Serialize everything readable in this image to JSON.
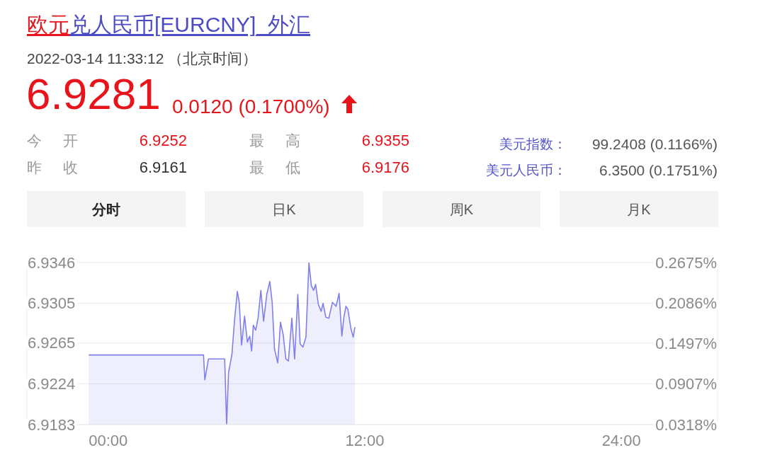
{
  "chart_data": {
    "type": "area",
    "title": "欧元兑人民币[EURCNY]_外汇",
    "subtitle": "2022-03-14 11:33:12 （北京时间）",
    "annotations": [
      "6.9281",
      "0.0120 (0.1700%)",
      "今 开",
      "6.9252",
      "最 高",
      "6.9355",
      "昨 收",
      "6.9161",
      "最 低",
      "6.9176",
      "美元指数：",
      "99.2408 (0.1166%)",
      "美元人民币：",
      "6.3500 (0.1751%)",
      "分时",
      "日K",
      "周K",
      "月K"
    ],
    "x": [
      -0.91,
      4.46,
      4.52,
      4.69,
      5.45,
      5.54,
      5.63,
      5.79,
      5.91,
      6.04,
      6.13,
      6.24,
      6.38,
      6.51,
      6.62,
      6.71,
      6.79,
      6.9,
      7.01,
      7.14,
      7.27,
      7.42,
      7.56,
      7.67,
      7.78,
      7.93,
      8.06,
      8.19,
      8.31,
      8.43,
      8.59,
      8.72,
      8.87,
      8.98,
      9.11,
      9.25,
      9.39,
      9.5,
      9.61,
      9.7,
      9.83,
      9.96,
      10.05,
      10.18,
      10.32,
      10.49,
      10.66,
      10.8,
      10.93,
      11.02,
      11.12,
      11.21,
      11.35,
      11.46,
      11.54
    ],
    "series": [
      {
        "color": "#7f7fee",
        "values": [
          6.9253,
          6.9253,
          6.9228,
          6.9249,
          6.9249,
          6.9183,
          6.9235,
          6.9254,
          6.9288,
          6.9317,
          6.9306,
          6.9263,
          6.9292,
          6.9266,
          6.9272,
          6.9257,
          6.9283,
          6.9278,
          6.929,
          6.9318,
          6.9287,
          6.9314,
          6.9327,
          6.9306,
          6.9259,
          6.9245,
          6.9286,
          6.9273,
          6.9249,
          6.9247,
          6.929,
          6.9249,
          6.9314,
          6.9264,
          6.9261,
          6.9271,
          6.9346,
          6.9323,
          6.9318,
          6.9324,
          6.9304,
          6.9297,
          6.9305,
          6.9291,
          6.929,
          6.9306,
          6.9302,
          6.9315,
          6.9272,
          6.929,
          6.9302,
          6.9299,
          6.928,
          6.9271,
          6.9281
        ]
      }
    ],
    "xlim": [
      -3.8,
      28.5
    ],
    "xticks": [
      {
        "value": 0,
        "label": "00:00"
      },
      {
        "value": 12,
        "label": "12:00"
      },
      {
        "value": 24,
        "label": "24:00"
      }
    ],
    "ylim": [
      6.9183,
      6.9346
    ],
    "yticks": [
      6.9183,
      6.9224,
      6.9265,
      6.9305,
      6.9346
    ],
    "y2lim": [
      0.0318,
      0.2675
    ],
    "y2ticks": [
      {
        "value": 0.0318,
        "label": "0.0318%"
      },
      {
        "value": 0.0907,
        "label": "0.0907%"
      },
      {
        "value": 0.1497,
        "label": "0.1497%"
      },
      {
        "value": 0.2086,
        "label": "0.2086%"
      },
      {
        "value": 0.2675,
        "label": "0.2675%"
      }
    ],
    "grid": "y"
  }
}
